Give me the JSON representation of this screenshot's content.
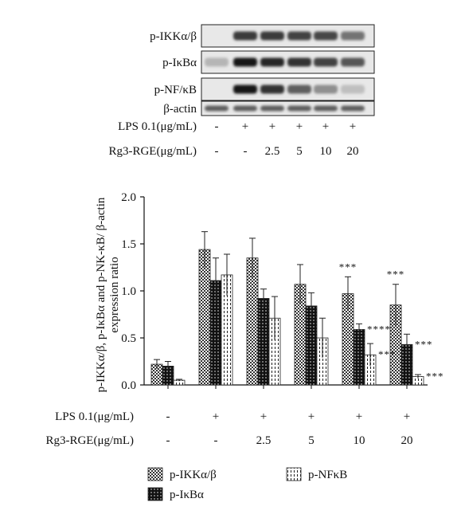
{
  "blot": {
    "rows": [
      {
        "label": "p-IKKα/β",
        "intensity": [
          0.0,
          0.75,
          0.75,
          0.7,
          0.68,
          0.45
        ]
      },
      {
        "label": "p-IκBα",
        "intensity": [
          0.1,
          0.95,
          0.85,
          0.8,
          0.7,
          0.6
        ]
      },
      {
        "label": "p-NF/κB",
        "intensity": [
          0.0,
          0.95,
          0.8,
          0.55,
          0.3,
          0.05
        ]
      },
      {
        "label": "β-actin",
        "intensity": [
          0.55,
          0.55,
          0.55,
          0.55,
          0.55,
          0.55
        ]
      }
    ],
    "conditions": [
      {
        "label": "LPS 0.1(μg/mL)",
        "values": [
          "-",
          "+",
          "+",
          "+",
          "+",
          "+"
        ]
      },
      {
        "label": "Rg3-RGE(μg/mL)",
        "values": [
          "-",
          "-",
          "2.5",
          "5",
          "10",
          "20"
        ]
      }
    ]
  },
  "chart_data": {
    "type": "bar",
    "ylabel_line1": "p-IKKα/β, p-IκBα  and p-NK-κB/ β-actin",
    "ylabel_line2": "expression ratio",
    "ylim": [
      0,
      2.0
    ],
    "yticks": [
      "0.0",
      "0.5",
      "1.0",
      "1.5",
      "2.0"
    ],
    "groups": 6,
    "series": [
      {
        "name": "p-IKKα/β",
        "pattern": "checker",
        "values": [
          0.22,
          1.44,
          1.35,
          1.07,
          0.97,
          0.85
        ],
        "errors": [
          0.05,
          0.19,
          0.21,
          0.21,
          0.18,
          0.22
        ],
        "stars": [
          "",
          "",
          "",
          "",
          "***",
          "***"
        ]
      },
      {
        "name": "p-IκBα",
        "pattern": "dots",
        "values": [
          0.2,
          1.11,
          0.92,
          0.84,
          0.59,
          0.43
        ],
        "errors": [
          0.05,
          0.24,
          0.1,
          0.14,
          0.06,
          0.11
        ],
        "stars": [
          "",
          "",
          "",
          "",
          "****",
          "***"
        ]
      },
      {
        "name": "p-NFκB",
        "pattern": "dashes",
        "values": [
          0.05,
          1.17,
          0.71,
          0.5,
          0.32,
          0.09
        ],
        "errors": [
          0.01,
          0.22,
          0.23,
          0.21,
          0.12,
          0.02
        ],
        "stars": [
          "",
          "",
          "",
          "",
          "***",
          "***"
        ]
      }
    ],
    "conditions": [
      {
        "label": "LPS 0.1(μg/mL)",
        "values": [
          "-",
          "+",
          "+",
          "+",
          "+",
          "+"
        ]
      },
      {
        "label": "Rg3-RGE(μg/mL)",
        "values": [
          "-",
          "-",
          "2.5",
          "5",
          "10",
          "20"
        ]
      }
    ],
    "legend_position": "bottom"
  }
}
